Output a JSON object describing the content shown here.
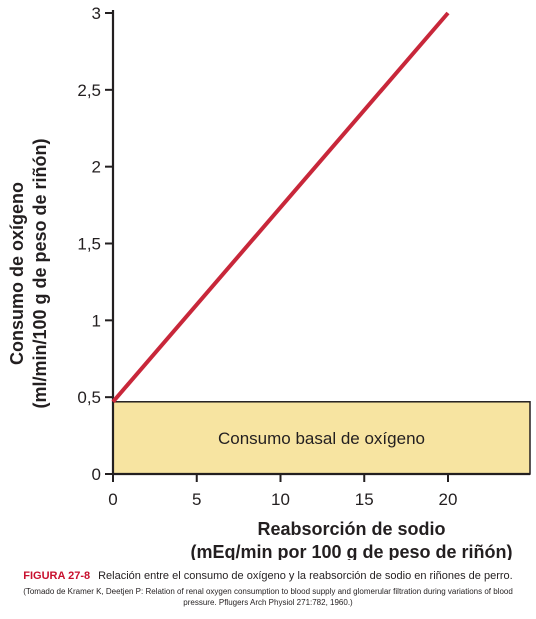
{
  "chart_data": {
    "type": "line",
    "x_ticks": [
      "0",
      "5",
      "10",
      "15",
      "20"
    ],
    "y_ticks": [
      "0",
      "0,5",
      "1",
      "1,5",
      "2",
      "2,5",
      "3"
    ],
    "xlim": [
      0,
      25
    ],
    "ylim": [
      0,
      3
    ],
    "ylabel_line1": "Consumo de oxígeno",
    "ylabel_line2": "(ml/min/100 g de peso de riñón)",
    "xlabel_line1": "Reabsorción de sodio",
    "xlabel_line2": "(mEq/min por 100 g de peso de riñón)",
    "series": [
      {
        "x": [
          0,
          20
        ],
        "y": [
          0.47,
          3.0
        ],
        "color": "#c8273a"
      }
    ],
    "bands": [
      {
        "label": "Consumo basal de oxígeno",
        "y_from": 0,
        "y_to": 0.47,
        "color": "#f7e4a1"
      }
    ],
    "grid": false
  },
  "caption": {
    "figure_number": "FIGURA 27-8",
    "text": "Relación entre el consumo de oxígeno y la reabsorción de sodio en riñones de perro.",
    "source": "(Tomado de Kramer K, Deetjen P: Relation of renal oxygen consumption to blood supply and glomerular filtration during variations of blood pressure. Pflugers Arch Physiol 271:782, 1960.)"
  }
}
